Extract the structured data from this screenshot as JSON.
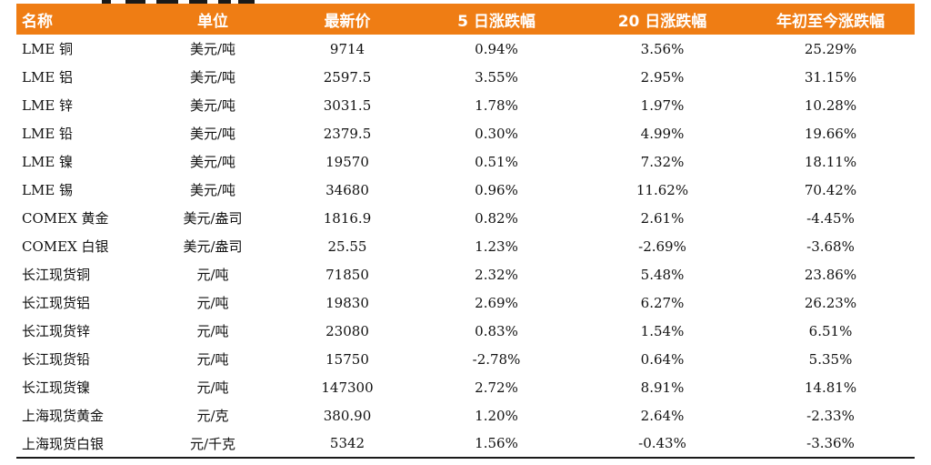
{
  "table": {
    "headers": [
      "名称",
      "单位",
      "最新价",
      "5 日涨跌幅",
      "20 日涨跌幅",
      "年初至今涨跌幅"
    ],
    "rows": [
      [
        "LME 铜",
        "美元/吨",
        "9714",
        "0.94%",
        "3.56%",
        "25.29%"
      ],
      [
        "LME 铝",
        "美元/吨",
        "2597.5",
        "3.55%",
        "2.95%",
        "31.15%"
      ],
      [
        "LME 锌",
        "美元/吨",
        "3031.5",
        "1.78%",
        "1.97%",
        "10.28%"
      ],
      [
        "LME 铅",
        "美元/吨",
        "2379.5",
        "0.30%",
        "4.99%",
        "19.66%"
      ],
      [
        "LME 镍",
        "美元/吨",
        "19570",
        "0.51%",
        "7.32%",
        "18.11%"
      ],
      [
        "LME 锡",
        "美元/吨",
        "34680",
        "0.96%",
        "11.62%",
        "70.42%"
      ],
      [
        "COMEX 黄金",
        "美元/盎司",
        "1816.9",
        "0.82%",
        "2.61%",
        "-4.45%"
      ],
      [
        "COMEX 白银",
        "美元/盎司",
        "25.55",
        "1.23%",
        "-2.69%",
        "-3.68%"
      ],
      [
        "长江现货铜",
        "元/吨",
        "71850",
        "2.32%",
        "5.48%",
        "23.86%"
      ],
      [
        "长江现货铝",
        "元/吨",
        "19830",
        "2.69%",
        "6.27%",
        "26.23%"
      ],
      [
        "长江现货锌",
        "元/吨",
        "23080",
        "0.83%",
        "1.54%",
        "6.51%"
      ],
      [
        "长江现货铅",
        "元/吨",
        "15750",
        "-2.78%",
        "0.64%",
        "5.35%"
      ],
      [
        "长江现货镍",
        "元/吨",
        "147300",
        "2.72%",
        "8.91%",
        "14.81%"
      ],
      [
        "上海现货黄金",
        "元/克",
        "380.90",
        "1.20%",
        "2.64%",
        "-2.33%"
      ],
      [
        "上海现货白银",
        "元/千克",
        "5342",
        "1.56%",
        "-0.43%",
        "-3.36%"
      ]
    ]
  },
  "colors": {
    "header_background": "#ef7d14",
    "header_text": "#ffffff",
    "body_text": "#111111"
  }
}
